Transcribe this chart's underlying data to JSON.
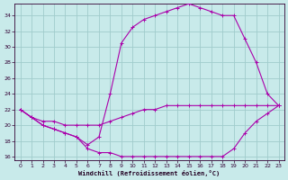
{
  "xlabel": "Windchill (Refroidissement éolien,°C)",
  "background_color": "#c8eaea",
  "grid_color": "#a0cccc",
  "line_color": "#aa00aa",
  "xlim_min": -0.5,
  "xlim_max": 23.5,
  "ylim_min": 15.5,
  "ylim_max": 35.5,
  "xticks": [
    0,
    1,
    2,
    3,
    4,
    5,
    6,
    7,
    8,
    9,
    10,
    11,
    12,
    13,
    14,
    15,
    16,
    17,
    18,
    19,
    20,
    21,
    22,
    23
  ],
  "yticks": [
    16,
    18,
    20,
    22,
    24,
    26,
    28,
    30,
    32,
    34
  ],
  "line1_x": [
    0,
    1,
    2,
    3,
    4,
    5,
    6,
    7,
    8,
    9,
    10,
    11,
    12,
    13,
    14,
    15,
    16,
    17,
    18,
    19,
    20,
    21,
    22,
    23
  ],
  "line1_y": [
    22,
    21,
    20,
    19.5,
    19,
    18.5,
    17,
    16.5,
    16.5,
    16,
    16,
    16,
    16,
    16,
    16,
    16,
    16,
    16,
    16,
    17,
    19,
    20.5,
    21.5,
    22.5
  ],
  "line2_x": [
    0,
    1,
    2,
    3,
    4,
    5,
    6,
    7,
    8,
    9,
    10,
    11,
    12,
    13,
    14,
    15,
    16,
    17,
    18,
    19,
    20,
    21,
    22,
    23
  ],
  "line2_y": [
    22,
    21,
    20.5,
    20.5,
    20,
    20,
    20,
    20,
    20.5,
    21,
    21.5,
    22,
    22,
    22.5,
    22.5,
    22.5,
    22.5,
    22.5,
    22.5,
    22.5,
    22.5,
    22.5,
    22.5,
    22.5
  ],
  "line3_x": [
    0,
    1,
    2,
    3,
    4,
    5,
    6,
    7,
    8,
    9,
    10,
    11,
    12,
    13,
    14,
    15,
    16,
    17,
    18,
    19,
    20,
    21,
    22,
    23
  ],
  "line3_y": [
    22,
    21,
    20,
    19.5,
    19,
    18.5,
    17.5,
    18.5,
    24,
    30.5,
    32.5,
    33.5,
    34,
    34.5,
    35,
    35.5,
    35,
    34.5,
    34,
    34,
    31,
    28,
    24,
    22.5
  ]
}
